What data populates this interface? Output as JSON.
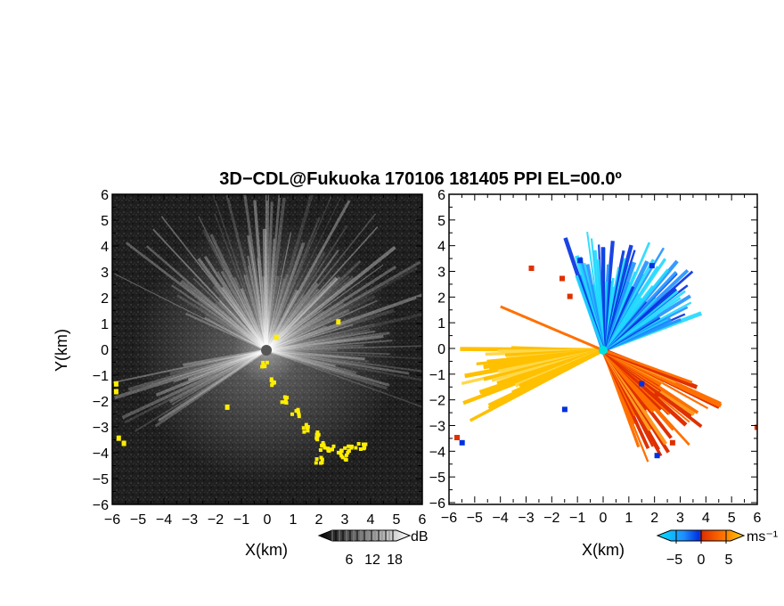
{
  "figure": {
    "title": "3D−CDL@Fukuoka 170106 181405 PPI EL=00.0º"
  },
  "panels": [
    {
      "id": "reflectivity",
      "xlabel": "X(km)",
      "ylabel": "Y(km)",
      "xticks": [
        "−6",
        "−5",
        "−4",
        "−3",
        "−2",
        "−1",
        "0",
        "1",
        "2",
        "3",
        "4",
        "5",
        "6"
      ],
      "yticks": [
        "6",
        "5",
        "4",
        "3",
        "2",
        "1",
        "0",
        "−1",
        "−2",
        "−3",
        "−4",
        "−5",
        "−6"
      ],
      "colorbar": {
        "unit": "dB",
        "ticks": [
          "6",
          "12",
          "18"
        ]
      }
    },
    {
      "id": "velocity",
      "xlabel": "X(km)",
      "xticks": [
        "−6",
        "−5",
        "−4",
        "−3",
        "−2",
        "−1",
        "0",
        "1",
        "2",
        "3",
        "4",
        "5",
        "6"
      ],
      "yticks": [
        "6",
        "5",
        "4",
        "3",
        "2",
        "1",
        "0",
        "−1",
        "−2",
        "−3",
        "−4",
        "−5",
        "−6"
      ],
      "colorbar": {
        "unit": "ms⁻¹",
        "ticks": [
          "−5",
          "0",
          "5"
        ]
      }
    }
  ],
  "chart_data": [
    {
      "type": "heatmap",
      "title": "3D−CDL@Fukuoka 170106 181405 PPI EL=00.0º",
      "xlabel": "X(km)",
      "ylabel": "Y(km)",
      "xlim": [
        -6,
        6
      ],
      "ylim": [
        -6,
        6
      ],
      "colorbar_range": [
        3,
        21
      ],
      "colorbar_unit": "dB",
      "colormap": "grayscale",
      "highlight_color": "#ffee00",
      "background_color": "#1e1e1e"
    },
    {
      "type": "heatmap",
      "xlabel": "X(km)",
      "xlim": [
        -6,
        6
      ],
      "ylim": [
        -6,
        6
      ],
      "colorbar_range": [
        -7.5,
        7.5
      ],
      "colorbar_unit": "ms⁻¹",
      "colormap": [
        "#00e5ff",
        "#2090ff",
        "#0030e0",
        "#e03000",
        "#ff7000",
        "#ffd000"
      ]
    }
  ]
}
